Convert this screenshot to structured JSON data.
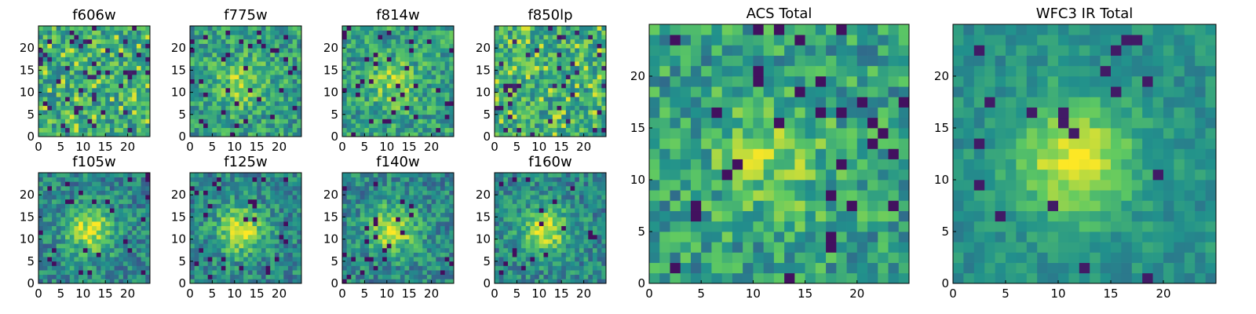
{
  "chart_data": [
    {
      "type": "heatmap",
      "title": "f606w",
      "band": "ACS",
      "pattern": "noise",
      "seed": 11,
      "x_ticks": [
        0,
        5,
        10,
        15,
        20
      ],
      "y_ticks": [
        0,
        5,
        10,
        15,
        20
      ],
      "xlim": [
        0,
        25
      ],
      "ylim": [
        0,
        25
      ],
      "grid_size": [
        25,
        25
      ]
    },
    {
      "type": "heatmap",
      "title": "f775w",
      "band": "ACS",
      "pattern": "faint-blob",
      "seed": 23,
      "x_ticks": [
        0,
        5,
        10,
        15,
        20
      ],
      "y_ticks": [
        0,
        5,
        10,
        15,
        20
      ],
      "xlim": [
        0,
        25
      ],
      "ylim": [
        0,
        25
      ],
      "grid_size": [
        25,
        25
      ]
    },
    {
      "type": "heatmap",
      "title": "f814w",
      "band": "ACS",
      "pattern": "faint-blob",
      "seed": 37,
      "x_ticks": [
        0,
        5,
        10,
        15,
        20
      ],
      "y_ticks": [
        0,
        5,
        10,
        15,
        20
      ],
      "xlim": [
        0,
        25
      ],
      "ylim": [
        0,
        25
      ],
      "grid_size": [
        25,
        25
      ]
    },
    {
      "type": "heatmap",
      "title": "f850lp",
      "band": "ACS",
      "pattern": "noise",
      "seed": 41,
      "x_ticks": [
        0,
        5,
        10,
        15,
        20
      ],
      "y_ticks": [
        0,
        5,
        10,
        15,
        20
      ],
      "xlim": [
        0,
        25
      ],
      "ylim": [
        0,
        25
      ],
      "grid_size": [
        25,
        25
      ]
    },
    {
      "type": "heatmap",
      "title": "f105w",
      "band": "WFC3 IR",
      "pattern": "blob",
      "seed": 53,
      "x_ticks": [
        0,
        5,
        10,
        15,
        20
      ],
      "y_ticks": [
        0,
        5,
        10,
        15,
        20
      ],
      "xlim": [
        0,
        25
      ],
      "ylim": [
        0,
        25
      ],
      "grid_size": [
        25,
        25
      ]
    },
    {
      "type": "heatmap",
      "title": "f125w",
      "band": "WFC3 IR",
      "pattern": "blob",
      "seed": 67,
      "x_ticks": [
        0,
        5,
        10,
        15,
        20
      ],
      "y_ticks": [
        0,
        5,
        10,
        15,
        20
      ],
      "xlim": [
        0,
        25
      ],
      "ylim": [
        0,
        25
      ],
      "grid_size": [
        25,
        25
      ]
    },
    {
      "type": "heatmap",
      "title": "f140w",
      "band": "WFC3 IR",
      "pattern": "blob",
      "seed": 79,
      "x_ticks": [
        0,
        5,
        10,
        15,
        20
      ],
      "y_ticks": [
        0,
        5,
        10,
        15,
        20
      ],
      "xlim": [
        0,
        25
      ],
      "ylim": [
        0,
        25
      ],
      "grid_size": [
        25,
        25
      ]
    },
    {
      "type": "heatmap",
      "title": "f160w",
      "band": "WFC3 IR",
      "pattern": "blob",
      "seed": 83,
      "x_ticks": [
        0,
        5,
        10,
        15,
        20
      ],
      "y_ticks": [
        0,
        5,
        10,
        15,
        20
      ],
      "xlim": [
        0,
        25
      ],
      "ylim": [
        0,
        25
      ],
      "grid_size": [
        25,
        25
      ]
    },
    {
      "type": "heatmap",
      "title": "ACS Total",
      "band": "ACS",
      "pattern": "faint-blob",
      "seed": 97,
      "x_ticks": [
        0,
        5,
        10,
        15,
        20
      ],
      "y_ticks": [
        0,
        5,
        10,
        15,
        20
      ],
      "xlim": [
        0,
        25
      ],
      "ylim": [
        0,
        25
      ],
      "grid_size": [
        25,
        25
      ]
    },
    {
      "type": "heatmap",
      "title": "WFC3 IR Total",
      "band": "WFC3 IR",
      "pattern": "smooth-blob",
      "seed": 101,
      "x_ticks": [
        0,
        5,
        10,
        15,
        20
      ],
      "y_ticks": [
        0,
        5,
        10,
        15,
        20
      ],
      "xlim": [
        0,
        25
      ],
      "ylim": [
        0,
        25
      ],
      "grid_size": [
        25,
        25
      ]
    }
  ],
  "colormap": [
    "#440154",
    "#3b528b",
    "#21918c",
    "#5ec962",
    "#fde725"
  ]
}
